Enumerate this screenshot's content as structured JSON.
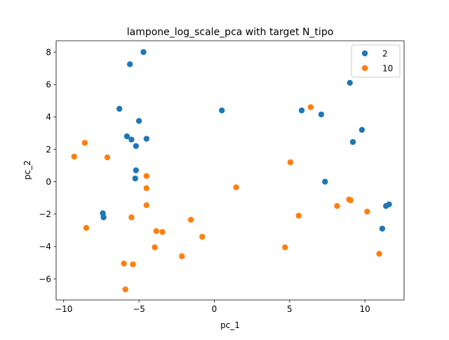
{
  "chart_data": {
    "type": "scatter",
    "title": "lampone_log_scale_pca with target N_tipo",
    "xlabel": "pc_1",
    "ylabel": "pc_2",
    "xlim": [
      -10.5,
      12.6
    ],
    "ylim": [
      -7.3,
      8.7
    ],
    "xticks": [
      -10,
      -5,
      0,
      5,
      10
    ],
    "yticks": [
      -6,
      -4,
      -2,
      0,
      2,
      4,
      6,
      8
    ],
    "grid": false,
    "legend_position": "top-right",
    "series": [
      {
        "name": "2",
        "color": "#1f77b4",
        "points": [
          [
            -4.7,
            8.0
          ],
          [
            -5.6,
            7.25
          ],
          [
            -6.3,
            4.5
          ],
          [
            -5.0,
            3.75
          ],
          [
            -5.8,
            2.8
          ],
          [
            -5.5,
            2.6
          ],
          [
            -5.2,
            2.2
          ],
          [
            -4.5,
            2.65
          ],
          [
            -5.2,
            0.7
          ],
          [
            -5.25,
            0.2
          ],
          [
            -7.4,
            -1.95
          ],
          [
            -7.35,
            -2.2
          ],
          [
            0.5,
            4.4
          ],
          [
            5.8,
            4.4
          ],
          [
            7.1,
            4.15
          ],
          [
            9.0,
            6.1
          ],
          [
            9.8,
            3.2
          ],
          [
            9.2,
            2.45
          ],
          [
            7.35,
            0.0
          ],
          [
            11.15,
            -2.9
          ],
          [
            11.4,
            -1.5
          ],
          [
            11.6,
            -1.4
          ]
        ]
      },
      {
        "name": "10",
        "color": "#ff7f0e",
        "points": [
          [
            -9.3,
            1.55
          ],
          [
            -8.6,
            2.4
          ],
          [
            -7.1,
            1.5
          ],
          [
            -8.5,
            -2.85
          ],
          [
            -4.5,
            0.35
          ],
          [
            -4.5,
            -0.4
          ],
          [
            -4.5,
            -1.45
          ],
          [
            -5.5,
            -2.2
          ],
          [
            -3.85,
            -3.05
          ],
          [
            -3.45,
            -3.1
          ],
          [
            -3.95,
            -4.05
          ],
          [
            -6.0,
            -5.05
          ],
          [
            -5.4,
            -5.1
          ],
          [
            -5.9,
            -6.65
          ],
          [
            -1.55,
            -2.35
          ],
          [
            -0.8,
            -3.4
          ],
          [
            -2.15,
            -4.6
          ],
          [
            1.45,
            -0.35
          ],
          [
            5.05,
            1.2
          ],
          [
            6.4,
            4.6
          ],
          [
            5.6,
            -2.1
          ],
          [
            4.7,
            -4.05
          ],
          [
            8.15,
            -1.5
          ],
          [
            8.95,
            -1.1
          ],
          [
            9.05,
            -1.15
          ],
          [
            10.15,
            -1.85
          ],
          [
            10.95,
            -4.45
          ]
        ]
      }
    ]
  }
}
